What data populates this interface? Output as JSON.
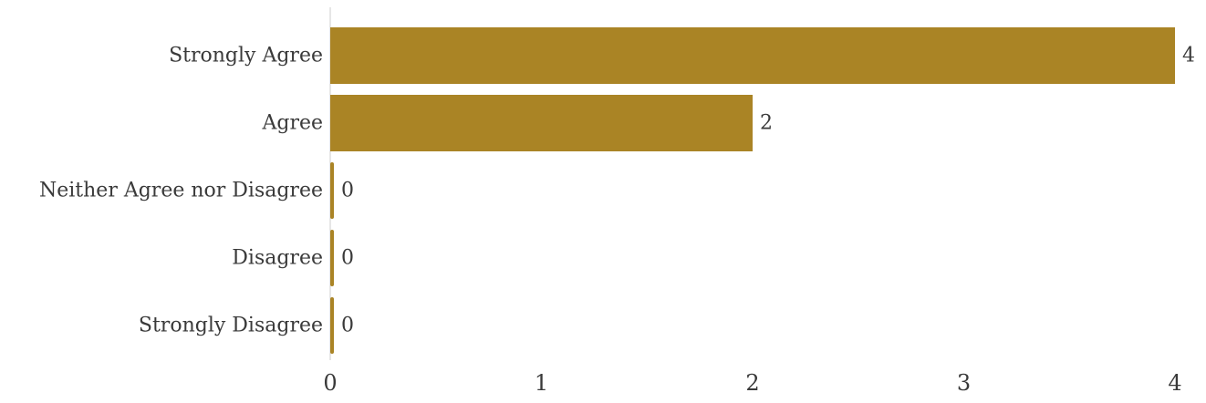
{
  "chart_data": {
    "type": "bar",
    "orientation": "horizontal",
    "categories": [
      "Strongly Agree",
      "Agree",
      "Neither Agree nor Disagree",
      "Disagree",
      "Strongly Disagree"
    ],
    "values": [
      4,
      2,
      0,
      0,
      0
    ],
    "value_labels": [
      "4",
      "2",
      "0",
      "0",
      "0"
    ],
    "xlim": [
      0,
      4
    ],
    "x_ticks": [
      0,
      1,
      2,
      3,
      4
    ],
    "x_tick_labels": [
      "0",
      "1",
      "2",
      "3",
      "4"
    ],
    "title": "",
    "xlabel": "",
    "ylabel": "",
    "grid": false,
    "legend": "none",
    "bar_color": "#AA8425",
    "axis_color": "#dddddd",
    "text_color": "#3a3a3a"
  }
}
